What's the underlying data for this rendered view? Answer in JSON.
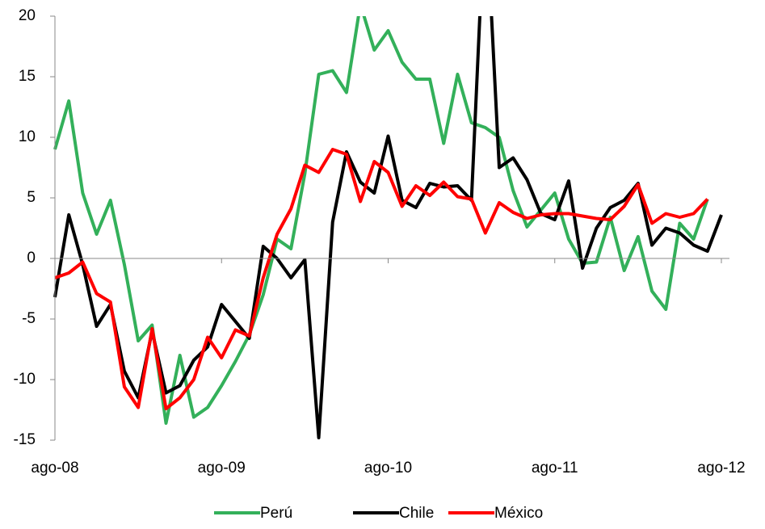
{
  "chart_data": {
    "type": "line",
    "categories": [
      "ago-08",
      null,
      null,
      null,
      null,
      null,
      null,
      null,
      null,
      null,
      null,
      null,
      "ago-09",
      null,
      null,
      null,
      null,
      null,
      null,
      null,
      null,
      null,
      null,
      null,
      "ago-10",
      null,
      null,
      null,
      null,
      null,
      null,
      null,
      null,
      null,
      null,
      null,
      "ago-11",
      null,
      null,
      null,
      null,
      null,
      null,
      null,
      null,
      null,
      null,
      null,
      "ago-12"
    ],
    "ylim": [
      -15,
      20
    ],
    "yticks": [
      -15,
      -10,
      -5,
      0,
      5,
      10,
      15,
      20
    ],
    "grid": false,
    "legend": "bottom",
    "series": [
      {
        "name": "Perú",
        "color": "#33b05a",
        "values": [
          9.0,
          13.0,
          5.4,
          2.0,
          4.8,
          -0.5,
          -6.8,
          -5.5,
          -13.6,
          -8.0,
          -13.1,
          -12.3,
          -10.5,
          -8.5,
          -6.3,
          -3.0,
          1.6,
          0.8,
          7.0,
          15.2,
          15.5,
          13.7,
          21.0,
          17.2,
          18.8,
          16.2,
          14.8,
          14.8,
          9.5,
          15.2,
          11.2,
          10.8,
          10.0,
          5.6,
          2.6,
          4.0,
          5.4,
          1.6,
          -0.4,
          -0.3,
          3.4,
          -1.0,
          1.8,
          -2.7,
          -4.2,
          2.9,
          1.6,
          4.9,
          null
        ]
      },
      {
        "name": "Chile",
        "color": "#000000",
        "values": [
          -3.2,
          3.6,
          -0.5,
          -5.6,
          -3.8,
          -9.3,
          -11.5,
          -6.0,
          -11.1,
          -10.5,
          -8.4,
          -7.3,
          -3.8,
          -5.2,
          -6.6,
          1.0,
          0.0,
          -1.6,
          -0.1,
          -14.8,
          3.0,
          8.8,
          6.3,
          5.4,
          10.1,
          4.8,
          4.2,
          6.2,
          5.9,
          6.0,
          4.8,
          30.0,
          7.5,
          8.3,
          6.5,
          3.7,
          3.2,
          6.4,
          -0.8,
          2.5,
          4.2,
          4.8,
          6.2,
          1.1,
          2.5,
          2.1,
          1.1,
          0.6,
          3.6
        ]
      },
      {
        "name": "México",
        "color": "#ff0000",
        "values": [
          -1.6,
          -1.2,
          -0.3,
          -2.9,
          -3.6,
          -10.6,
          -12.3,
          -5.8,
          -12.4,
          -11.5,
          -10.0,
          -6.5,
          -8.2,
          -5.9,
          -6.4,
          -1.6,
          2.0,
          4.1,
          7.7,
          7.1,
          9.0,
          8.6,
          4.7,
          8.0,
          7.1,
          4.3,
          6.0,
          5.2,
          6.3,
          5.1,
          4.9,
          2.1,
          4.6,
          3.8,
          3.3,
          3.6,
          3.7,
          3.7,
          3.5,
          3.3,
          3.2,
          4.3,
          6.1,
          2.9,
          3.7,
          3.4,
          3.7,
          4.9,
          null
        ]
      }
    ]
  }
}
